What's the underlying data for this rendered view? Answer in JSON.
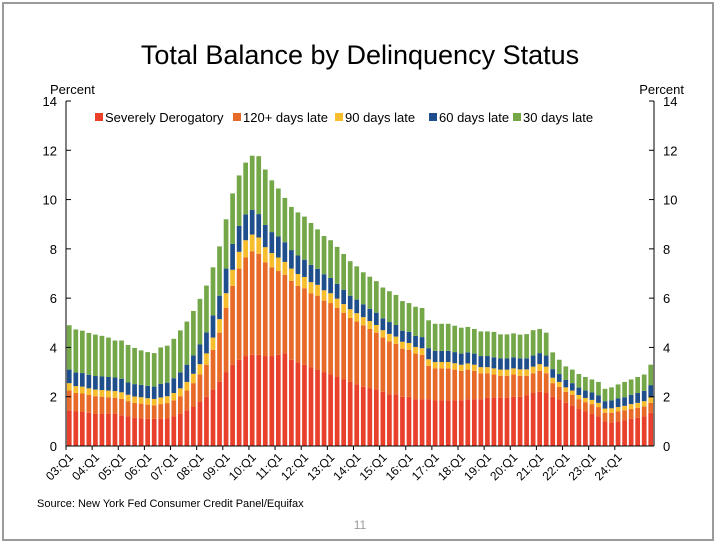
{
  "slide": {
    "source": "Source: New York Fed Consumer Credit Panel/Equifax",
    "page_number": "11"
  },
  "chart_data": {
    "type": "bar",
    "stacked": true,
    "title": "Total Balance by Delinquency Status",
    "ylabel_left": "Percent",
    "ylabel_right": "Percent",
    "ylim": [
      0,
      14
    ],
    "yticks": [
      0,
      2,
      4,
      6,
      8,
      10,
      12,
      14
    ],
    "legend_position": "top",
    "grid": false,
    "x_tick_labels": [
      "03:Q1",
      "04:Q1",
      "05:Q1",
      "06:Q1",
      "07:Q1",
      "08:Q1",
      "09:Q1",
      "10:Q1",
      "11:Q1",
      "12:Q1",
      "13:Q1",
      "14:Q1",
      "15:Q1",
      "16:Q1",
      "17:Q1",
      "18:Q1",
      "19:Q1",
      "20:Q1",
      "21:Q1",
      "22:Q1",
      "23:Q1",
      "24:Q1"
    ],
    "series": [
      {
        "name": "Severely Derogatory",
        "color": "#e8402a",
        "values": [
          1.45,
          1.4,
          1.38,
          1.35,
          1.3,
          1.3,
          1.3,
          1.3,
          1.25,
          1.2,
          1.15,
          1.12,
          1.1,
          1.1,
          1.1,
          1.12,
          1.2,
          1.3,
          1.45,
          1.6,
          1.8,
          2.0,
          2.3,
          2.6,
          3.0,
          3.3,
          3.5,
          3.65,
          3.7,
          3.7,
          3.65,
          3.65,
          3.7,
          3.75,
          3.5,
          3.4,
          3.3,
          3.2,
          3.1,
          3.0,
          2.9,
          2.8,
          2.7,
          2.6,
          2.5,
          2.4,
          2.35,
          2.3,
          2.2,
          2.1,
          2.1,
          2.0,
          2.0,
          1.9,
          1.9,
          1.9,
          1.85,
          1.85,
          1.85,
          1.85,
          1.85,
          1.9,
          1.9,
          1.9,
          1.95,
          1.95,
          1.95,
          1.95,
          2.0,
          2.0,
          2.05,
          2.15,
          2.2,
          2.15,
          2.0,
          1.9,
          1.75,
          1.65,
          1.5,
          1.4,
          1.3,
          1.2,
          1.0,
          0.95,
          1.0,
          1.05,
          1.1,
          1.15,
          1.2,
          1.35
        ]
      },
      {
        "name": "120+ days late",
        "color": "#e86a28",
        "values": [
          0.8,
          0.75,
          0.75,
          0.72,
          0.72,
          0.7,
          0.68,
          0.66,
          0.66,
          0.62,
          0.6,
          0.6,
          0.58,
          0.55,
          0.6,
          0.62,
          0.65,
          0.72,
          0.8,
          0.95,
          1.1,
          1.3,
          1.6,
          2.0,
          2.6,
          3.2,
          3.7,
          4.0,
          4.2,
          4.1,
          3.8,
          3.6,
          3.4,
          3.2,
          3.2,
          3.1,
          3.1,
          3.0,
          3.0,
          2.9,
          2.9,
          2.8,
          2.7,
          2.6,
          2.55,
          2.5,
          2.4,
          2.3,
          2.2,
          2.15,
          2.05,
          1.95,
          1.9,
          1.85,
          1.8,
          1.35,
          1.3,
          1.3,
          1.3,
          1.25,
          1.2,
          1.2,
          1.15,
          1.05,
          1.0,
          0.95,
          0.9,
          0.9,
          0.9,
          0.85,
          0.8,
          0.8,
          0.85,
          0.8,
          0.55,
          0.5,
          0.45,
          0.42,
          0.4,
          0.38,
          0.4,
          0.38,
          0.35,
          0.4,
          0.4,
          0.4,
          0.4,
          0.4,
          0.4,
          0.4
        ]
      },
      {
        "name": "90 days late",
        "color": "#f6bd2c",
        "values": [
          0.3,
          0.28,
          0.28,
          0.27,
          0.27,
          0.27,
          0.27,
          0.27,
          0.27,
          0.26,
          0.26,
          0.26,
          0.26,
          0.26,
          0.27,
          0.28,
          0.3,
          0.32,
          0.35,
          0.38,
          0.42,
          0.46,
          0.5,
          0.55,
          0.6,
          0.65,
          0.68,
          0.7,
          0.68,
          0.66,
          0.62,
          0.58,
          0.55,
          0.52,
          0.5,
          0.48,
          0.46,
          0.45,
          0.44,
          0.42,
          0.4,
          0.38,
          0.36,
          0.35,
          0.34,
          0.33,
          0.32,
          0.31,
          0.3,
          0.3,
          0.29,
          0.28,
          0.28,
          0.27,
          0.27,
          0.27,
          0.26,
          0.26,
          0.26,
          0.26,
          0.25,
          0.25,
          0.25,
          0.25,
          0.25,
          0.25,
          0.25,
          0.25,
          0.25,
          0.26,
          0.26,
          0.27,
          0.27,
          0.27,
          0.22,
          0.2,
          0.18,
          0.18,
          0.17,
          0.17,
          0.17,
          0.17,
          0.17,
          0.18,
          0.18,
          0.18,
          0.2,
          0.2,
          0.22,
          0.22
        ]
      },
      {
        "name": "60 days late",
        "color": "#1f4e8c",
        "values": [
          0.55,
          0.55,
          0.55,
          0.55,
          0.55,
          0.55,
          0.55,
          0.55,
          0.55,
          0.5,
          0.5,
          0.5,
          0.5,
          0.5,
          0.55,
          0.55,
          0.6,
          0.65,
          0.7,
          0.75,
          0.8,
          0.85,
          0.9,
          0.95,
          1.0,
          1.05,
          1.05,
          1.05,
          1.0,
          0.95,
          0.9,
          0.85,
          0.85,
          0.8,
          0.75,
          0.75,
          0.7,
          0.7,
          0.65,
          0.65,
          0.62,
          0.6,
          0.58,
          0.55,
          0.55,
          0.52,
          0.5,
          0.5,
          0.48,
          0.48,
          0.47,
          0.45,
          0.45,
          0.45,
          0.45,
          0.45,
          0.45,
          0.45,
          0.45,
          0.45,
          0.45,
          0.45,
          0.45,
          0.45,
          0.45,
          0.45,
          0.45,
          0.45,
          0.45,
          0.45,
          0.45,
          0.45,
          0.45,
          0.45,
          0.35,
          0.32,
          0.3,
          0.3,
          0.3,
          0.3,
          0.3,
          0.3,
          0.3,
          0.32,
          0.35,
          0.35,
          0.38,
          0.4,
          0.42,
          0.5
        ]
      },
      {
        "name": "30 days late",
        "color": "#74a748",
        "values": [
          1.8,
          1.75,
          1.72,
          1.7,
          1.68,
          1.65,
          1.6,
          1.5,
          1.55,
          1.52,
          1.47,
          1.4,
          1.37,
          1.36,
          1.48,
          1.5,
          1.6,
          1.7,
          1.75,
          1.8,
          1.85,
          1.9,
          1.95,
          2.0,
          2.0,
          2.05,
          2.05,
          2.1,
          2.2,
          2.35,
          2.25,
          2.1,
          1.95,
          1.8,
          1.75,
          1.75,
          1.75,
          1.7,
          1.6,
          1.55,
          1.53,
          1.5,
          1.45,
          1.4,
          1.35,
          1.3,
          1.3,
          1.28,
          1.25,
          1.25,
          1.22,
          1.2,
          1.17,
          1.18,
          1.18,
          1.13,
          1.1,
          1.1,
          1.1,
          1.07,
          1.05,
          1.03,
          1.0,
          1.0,
          1.0,
          1.03,
          0.98,
          0.98,
          0.97,
          0.96,
          0.98,
          1.03,
          0.98,
          0.93,
          0.68,
          0.58,
          0.55,
          0.55,
          0.55,
          0.55,
          0.53,
          0.55,
          0.5,
          0.53,
          0.57,
          0.62,
          0.62,
          0.65,
          0.66,
          0.83
        ]
      }
    ]
  }
}
